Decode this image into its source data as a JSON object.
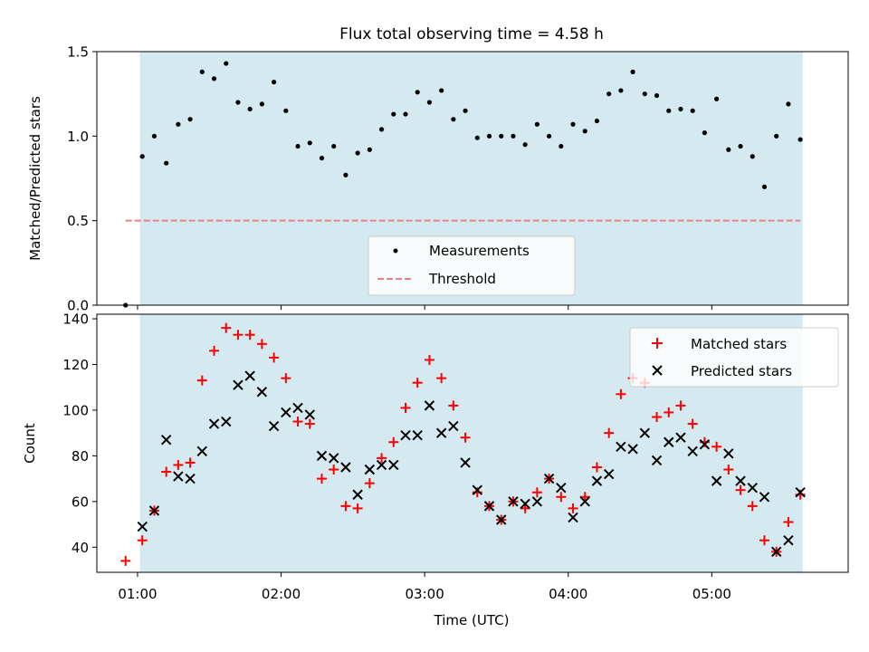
{
  "figure": {
    "title": "Flux total observing time = 4.58 h",
    "xlabel": "Time (UTC)",
    "shade_color": "#d4eaf0"
  },
  "chart_data": [
    {
      "type": "scatter",
      "ylabel": "Matched/Predicted stars",
      "ylim": [
        0,
        1.5
      ],
      "yticks": [
        0.0,
        0.5,
        1.0,
        1.5
      ],
      "ytick_labels": [
        "0.0",
        "0.5",
        "1.0",
        "1.5"
      ],
      "shaded_span": [
        "01:01",
        "05:38"
      ],
      "legend": {
        "placement": "lower-center",
        "entries": [
          "Measurements",
          "Threshold"
        ]
      },
      "threshold": {
        "name": "Threshold",
        "value": 0.5,
        "color": "#f08080",
        "style": "dashed"
      },
      "series": [
        {
          "name": "Measurements",
          "color": "#000000",
          "marker": "dot",
          "points": [
            [
              "00:55",
              0.0
            ],
            [
              "01:02",
              0.88
            ],
            [
              "01:07",
              1.0
            ],
            [
              "01:12",
              0.84
            ],
            [
              "01:17",
              1.07
            ],
            [
              "01:22",
              1.1
            ],
            [
              "01:27",
              1.38
            ],
            [
              "01:32",
              1.34
            ],
            [
              "01:37",
              1.43
            ],
            [
              "01:42",
              1.2
            ],
            [
              "01:47",
              1.16
            ],
            [
              "01:52",
              1.19
            ],
            [
              "01:57",
              1.32
            ],
            [
              "02:02",
              1.15
            ],
            [
              "02:07",
              0.94
            ],
            [
              "02:12",
              0.96
            ],
            [
              "02:17",
              0.87
            ],
            [
              "02:22",
              0.94
            ],
            [
              "02:27",
              0.77
            ],
            [
              "02:32",
              0.9
            ],
            [
              "02:37",
              0.92
            ],
            [
              "02:42",
              1.04
            ],
            [
              "02:47",
              1.13
            ],
            [
              "02:52",
              1.13
            ],
            [
              "02:57",
              1.26
            ],
            [
              "03:02",
              1.2
            ],
            [
              "03:07",
              1.27
            ],
            [
              "03:12",
              1.1
            ],
            [
              "03:17",
              1.15
            ],
            [
              "03:22",
              0.99
            ],
            [
              "03:27",
              1.0
            ],
            [
              "03:32",
              1.0
            ],
            [
              "03:37",
              1.0
            ],
            [
              "03:42",
              0.95
            ],
            [
              "03:47",
              1.07
            ],
            [
              "03:52",
              1.0
            ],
            [
              "03:57",
              0.94
            ],
            [
              "04:02",
              1.07
            ],
            [
              "04:07",
              1.03
            ],
            [
              "04:12",
              1.09
            ],
            [
              "04:17",
              1.25
            ],
            [
              "04:22",
              1.27
            ],
            [
              "04:27",
              1.38
            ],
            [
              "04:32",
              1.25
            ],
            [
              "04:37",
              1.24
            ],
            [
              "04:42",
              1.15
            ],
            [
              "04:47",
              1.16
            ],
            [
              "04:52",
              1.15
            ],
            [
              "04:57",
              1.02
            ],
            [
              "05:02",
              1.22
            ],
            [
              "05:07",
              0.92
            ],
            [
              "05:12",
              0.94
            ],
            [
              "05:17",
              0.88
            ],
            [
              "05:22",
              0.7
            ],
            [
              "05:27",
              1.0
            ],
            [
              "05:32",
              1.19
            ],
            [
              "05:37",
              0.98
            ]
          ]
        }
      ]
    },
    {
      "type": "scatter",
      "ylabel": "Count",
      "ylim": [
        29,
        142
      ],
      "yticks": [
        40,
        60,
        80,
        100,
        120,
        140
      ],
      "ytick_labels": [
        "40",
        "60",
        "80",
        "100",
        "120",
        "140"
      ],
      "xticks": [
        "01:00",
        "02:00",
        "03:00",
        "04:00",
        "05:00"
      ],
      "xlim": [
        "00:43",
        "05:57"
      ],
      "shaded_span": [
        "01:01",
        "05:38"
      ],
      "legend": {
        "placement": "upper-right",
        "entries": [
          "Matched stars",
          "Predicted stars"
        ]
      },
      "series": [
        {
          "name": "Matched stars",
          "color": "#ff0000",
          "marker": "plus",
          "points": [
            [
              "00:55",
              34
            ],
            [
              "01:02",
              43
            ],
            [
              "01:07",
              56
            ],
            [
              "01:12",
              73
            ],
            [
              "01:17",
              76
            ],
            [
              "01:22",
              77
            ],
            [
              "01:27",
              113
            ],
            [
              "01:32",
              126
            ],
            [
              "01:37",
              136
            ],
            [
              "01:42",
              133
            ],
            [
              "01:47",
              133
            ],
            [
              "01:52",
              129
            ],
            [
              "01:57",
              123
            ],
            [
              "02:02",
              114
            ],
            [
              "02:07",
              95
            ],
            [
              "02:12",
              94
            ],
            [
              "02:17",
              70
            ],
            [
              "02:22",
              74
            ],
            [
              "02:27",
              58
            ],
            [
              "02:32",
              57
            ],
            [
              "02:37",
              68
            ],
            [
              "02:42",
              79
            ],
            [
              "02:47",
              86
            ],
            [
              "02:52",
              101
            ],
            [
              "02:57",
              112
            ],
            [
              "03:02",
              122
            ],
            [
              "03:07",
              114
            ],
            [
              "03:12",
              102
            ],
            [
              "03:17",
              88
            ],
            [
              "03:22",
              64
            ],
            [
              "03:27",
              58
            ],
            [
              "03:32",
              52
            ],
            [
              "03:37",
              60
            ],
            [
              "03:42",
              57
            ],
            [
              "03:47",
              64
            ],
            [
              "03:52",
              70
            ],
            [
              "03:57",
              62
            ],
            [
              "04:02",
              57
            ],
            [
              "04:07",
              62
            ],
            [
              "04:12",
              75
            ],
            [
              "04:17",
              90
            ],
            [
              "04:22",
              107
            ],
            [
              "04:27",
              114
            ],
            [
              "04:32",
              112
            ],
            [
              "04:37",
              97
            ],
            [
              "04:42",
              99
            ],
            [
              "04:47",
              102
            ],
            [
              "04:52",
              94
            ],
            [
              "04:57",
              86
            ],
            [
              "05:02",
              84
            ],
            [
              "05:07",
              74
            ],
            [
              "05:12",
              65
            ],
            [
              "05:17",
              58
            ],
            [
              "05:22",
              43
            ],
            [
              "05:27",
              38
            ],
            [
              "05:32",
              51
            ],
            [
              "05:37",
              63
            ]
          ]
        },
        {
          "name": "Predicted stars",
          "color": "#000000",
          "marker": "x",
          "points": [
            [
              "01:02",
              49
            ],
            [
              "01:07",
              56
            ],
            [
              "01:12",
              87
            ],
            [
              "01:17",
              71
            ],
            [
              "01:22",
              70
            ],
            [
              "01:27",
              82
            ],
            [
              "01:32",
              94
            ],
            [
              "01:37",
              95
            ],
            [
              "01:42",
              111
            ],
            [
              "01:47",
              115
            ],
            [
              "01:52",
              108
            ],
            [
              "01:57",
              93
            ],
            [
              "02:02",
              99
            ],
            [
              "02:07",
              101
            ],
            [
              "02:12",
              98
            ],
            [
              "02:17",
              80
            ],
            [
              "02:22",
              79
            ],
            [
              "02:27",
              75
            ],
            [
              "02:32",
              63
            ],
            [
              "02:37",
              74
            ],
            [
              "02:42",
              76
            ],
            [
              "02:47",
              76
            ],
            [
              "02:52",
              89
            ],
            [
              "02:57",
              89
            ],
            [
              "03:02",
              102
            ],
            [
              "03:07",
              90
            ],
            [
              "03:12",
              93
            ],
            [
              "03:17",
              77
            ],
            [
              "03:22",
              65
            ],
            [
              "03:27",
              58
            ],
            [
              "03:32",
              52
            ],
            [
              "03:37",
              60
            ],
            [
              "03:42",
              59
            ],
            [
              "03:47",
              60
            ],
            [
              "03:52",
              70
            ],
            [
              "03:57",
              66
            ],
            [
              "04:02",
              53
            ],
            [
              "04:07",
              60
            ],
            [
              "04:12",
              69
            ],
            [
              "04:17",
              72
            ],
            [
              "04:22",
              84
            ],
            [
              "04:27",
              83
            ],
            [
              "04:32",
              90
            ],
            [
              "04:37",
              78
            ],
            [
              "04:42",
              86
            ],
            [
              "04:47",
              88
            ],
            [
              "04:52",
              82
            ],
            [
              "04:57",
              85
            ],
            [
              "05:02",
              69
            ],
            [
              "05:07",
              81
            ],
            [
              "05:12",
              69
            ],
            [
              "05:17",
              66
            ],
            [
              "05:22",
              62
            ],
            [
              "05:27",
              38
            ],
            [
              "05:32",
              43
            ],
            [
              "05:37",
              64
            ]
          ]
        }
      ]
    }
  ]
}
